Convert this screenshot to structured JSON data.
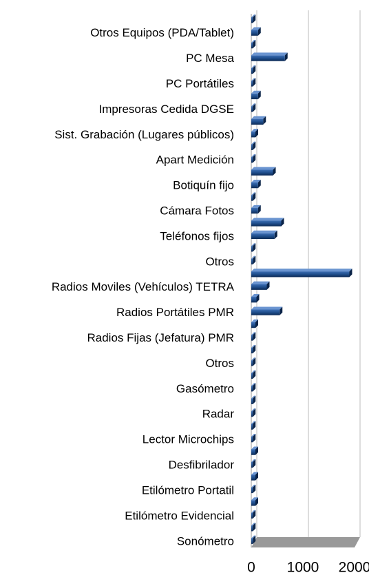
{
  "chart_data": {
    "type": "bar",
    "orientation": "horizontal",
    "color": "#1f4e8c",
    "categories": [
      null,
      "Otros Equipos (PDA/Tablet)",
      null,
      "PC Mesa",
      null,
      "PC Portátiles",
      null,
      "Impresoras Cedida DGSE",
      null,
      "Sist. Grabación (Lugares públicos)",
      null,
      "Apart Medición",
      null,
      "Botiquín fijo",
      null,
      "Cámara Fotos",
      null,
      "Teléfonos fijos",
      null,
      "Otros",
      null,
      "Radios Moviles (Vehículos) TETRA",
      null,
      "Radios Portátiles PMR",
      null,
      "Radios Fijas (Jefatura) PMR",
      null,
      "Otros",
      null,
      "Gasómetro",
      null,
      "Radar",
      null,
      "Lector Microchips",
      null,
      "Desfibrilador",
      null,
      "Etilómetro Portatil",
      null,
      "Etilómetro Evidencial",
      null,
      "Sonómetro"
    ],
    "values": [
      30,
      130,
      30,
      650,
      30,
      30,
      130,
      30,
      230,
      80,
      30,
      30,
      420,
      130,
      30,
      130,
      580,
      450,
      30,
      30,
      1900,
      300,
      100,
      550,
      80,
      30,
      30,
      30,
      30,
      30,
      30,
      30,
      30,
      30,
      80,
      30,
      80,
      30,
      80,
      30,
      30,
      30
    ],
    "xlim": [
      0,
      2000
    ],
    "xticks": [
      0,
      1000,
      2000
    ],
    "grid": true
  }
}
